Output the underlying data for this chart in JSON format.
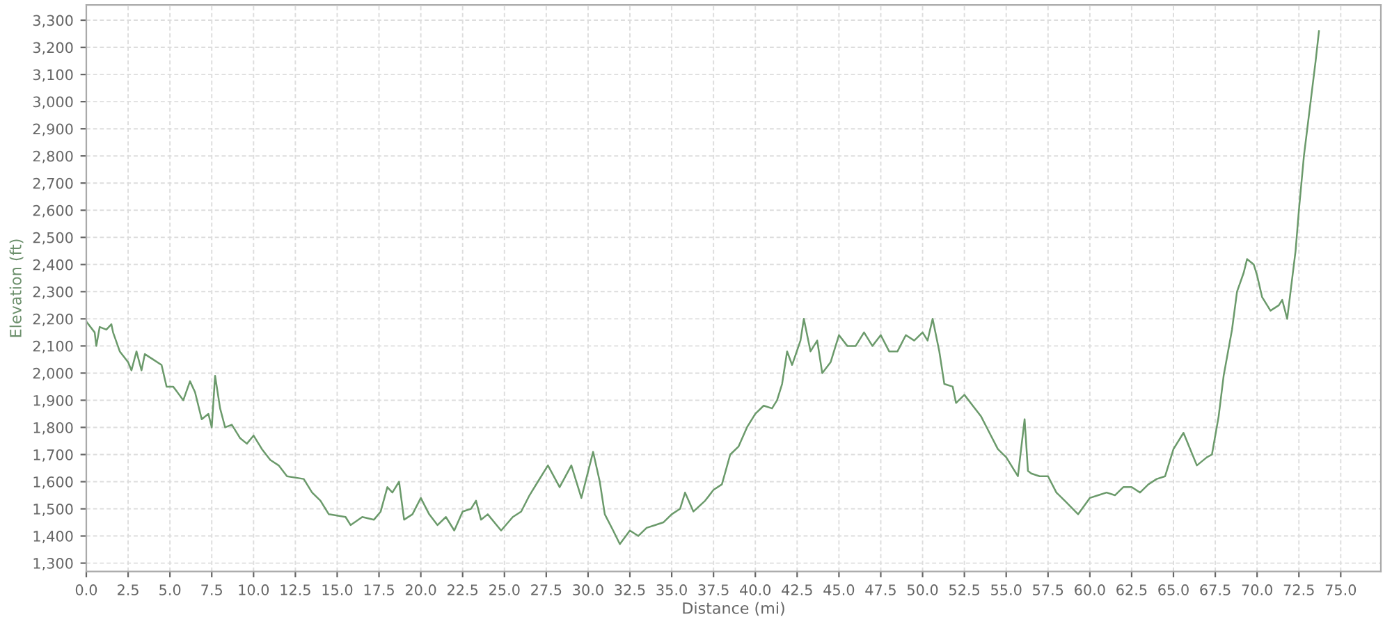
{
  "chart_data": {
    "type": "line",
    "xlabel": "Distance (mi)",
    "ylabel": "Elevation (ft)",
    "grid": true,
    "marker": "none",
    "line_style": "solid",
    "xlim": [
      0,
      77.4
    ],
    "ylim": [
      1269,
      3356
    ],
    "xticks": [
      {
        "value": 0,
        "label": "0.0"
      },
      {
        "value": 2.5,
        "label": "2.5"
      },
      {
        "value": 5,
        "label": "5.0"
      },
      {
        "value": 7.5,
        "label": "7.5"
      },
      {
        "value": 10,
        "label": "10.0"
      },
      {
        "value": 12.5,
        "label": "12.5"
      },
      {
        "value": 15,
        "label": "15.0"
      },
      {
        "value": 17.5,
        "label": "17.5"
      },
      {
        "value": 20,
        "label": "20.0"
      },
      {
        "value": 22.5,
        "label": "22.5"
      },
      {
        "value": 25,
        "label": "25.0"
      },
      {
        "value": 27.5,
        "label": "27.5"
      },
      {
        "value": 30,
        "label": "30.0"
      },
      {
        "value": 32.5,
        "label": "32.5"
      },
      {
        "value": 35,
        "label": "35.0"
      },
      {
        "value": 37.5,
        "label": "37.5"
      },
      {
        "value": 40,
        "label": "40.0"
      },
      {
        "value": 42.5,
        "label": "42.5"
      },
      {
        "value": 45,
        "label": "45.0"
      },
      {
        "value": 47.5,
        "label": "47.5"
      },
      {
        "value": 50,
        "label": "50.0"
      },
      {
        "value": 52.5,
        "label": "52.5"
      },
      {
        "value": 55,
        "label": "55.0"
      },
      {
        "value": 57.5,
        "label": "57.5"
      },
      {
        "value": 60,
        "label": "60.0"
      },
      {
        "value": 62.5,
        "label": "62.5"
      },
      {
        "value": 65,
        "label": "65.0"
      },
      {
        "value": 67.5,
        "label": "67.5"
      },
      {
        "value": 70,
        "label": "70.0"
      },
      {
        "value": 72.5,
        "label": "72.5"
      },
      {
        "value": 75,
        "label": "75.0"
      }
    ],
    "yticks": [
      {
        "value": 1300,
        "label": "1,300"
      },
      {
        "value": 1400,
        "label": "1,400"
      },
      {
        "value": 1500,
        "label": "1,500"
      },
      {
        "value": 1600,
        "label": "1,600"
      },
      {
        "value": 1700,
        "label": "1,700"
      },
      {
        "value": 1800,
        "label": "1,800"
      },
      {
        "value": 1900,
        "label": "1,900"
      },
      {
        "value": 2000,
        "label": "2,000"
      },
      {
        "value": 2100,
        "label": "2,100"
      },
      {
        "value": 2200,
        "label": "2,200"
      },
      {
        "value": 2300,
        "label": "2,300"
      },
      {
        "value": 2400,
        "label": "2,400"
      },
      {
        "value": 2500,
        "label": "2,500"
      },
      {
        "value": 2600,
        "label": "2,600"
      },
      {
        "value": 2700,
        "label": "2,700"
      },
      {
        "value": 2800,
        "label": "2,800"
      },
      {
        "value": 2900,
        "label": "2,900"
      },
      {
        "value": 3000,
        "label": "3,000"
      },
      {
        "value": 3100,
        "label": "3,100"
      },
      {
        "value": 3200,
        "label": "3,200"
      },
      {
        "value": 3300,
        "label": "3,300"
      }
    ],
    "series": [
      {
        "color": "#6b9a6b",
        "x": [
          0,
          0.5,
          0.6,
          0.8,
          1.2,
          1.5,
          1.6,
          2.0,
          2.5,
          2.7,
          3.0,
          3.3,
          3.5,
          4.0,
          4.5,
          4.8,
          5.2,
          5.8,
          6.2,
          6.5,
          6.9,
          7.3,
          7.5,
          7.7,
          8.0,
          8.3,
          8.7,
          9.2,
          9.6,
          10.0,
          10.5,
          11.0,
          11.5,
          12.0,
          13.0,
          13.5,
          14.0,
          14.5,
          15.5,
          15.8,
          16.5,
          17.2,
          17.6,
          18.0,
          18.3,
          18.7,
          19.0,
          19.5,
          20.0,
          20.5,
          21.0,
          21.5,
          22.0,
          22.5,
          23.0,
          23.3,
          23.6,
          24.0,
          24.8,
          25.5,
          26.0,
          26.5,
          27.0,
          27.6,
          28.3,
          29.0,
          29.6,
          30.3,
          30.7,
          31.0,
          31.5,
          31.9,
          32.5,
          33.0,
          33.5,
          34.0,
          34.5,
          35.0,
          35.5,
          35.8,
          36.3,
          37.0,
          37.5,
          38.0,
          38.5,
          39.0,
          39.5,
          40.0,
          40.5,
          41.0,
          41.3,
          41.6,
          41.9,
          42.2,
          42.7,
          42.9,
          43.3,
          43.7,
          44.0,
          44.5,
          45.0,
          45.5,
          46.0,
          46.5,
          47.0,
          47.5,
          48.0,
          48.5,
          49.0,
          49.5,
          50.0,
          50.3,
          50.6,
          51.0,
          51.3,
          51.8,
          52.0,
          52.5,
          53.0,
          53.5,
          54.0,
          54.5,
          55.0,
          55.5,
          55.7,
          56.1,
          56.3,
          56.5,
          57.0,
          57.5,
          58.0,
          58.5,
          59.3,
          60.0,
          60.5,
          61.0,
          61.5,
          62.0,
          62.5,
          63.0,
          63.5,
          64.0,
          64.5,
          65.0,
          65.6,
          66.0,
          66.4,
          67.0,
          67.3,
          67.7,
          68.0,
          68.5,
          68.8,
          69.2,
          69.4,
          69.8,
          70.0,
          70.3,
          70.8,
          71.3,
          71.5,
          71.8,
          72.0,
          72.3,
          72.5,
          72.8,
          73.2,
          73.5,
          73.7
        ],
        "values": [
          2190,
          2150,
          2100,
          2170,
          2160,
          2180,
          2150,
          2080,
          2040,
          2010,
          2080,
          2010,
          2070,
          2050,
          2030,
          1950,
          1950,
          1900,
          1970,
          1930,
          1830,
          1850,
          1800,
          1990,
          1870,
          1800,
          1810,
          1760,
          1740,
          1770,
          1720,
          1680,
          1660,
          1620,
          1610,
          1560,
          1530,
          1480,
          1470,
          1440,
          1470,
          1460,
          1490,
          1580,
          1560,
          1600,
          1460,
          1480,
          1540,
          1480,
          1440,
          1470,
          1420,
          1490,
          1500,
          1530,
          1460,
          1480,
          1420,
          1470,
          1490,
          1550,
          1600,
          1660,
          1580,
          1660,
          1540,
          1710,
          1600,
          1480,
          1420,
          1370,
          1420,
          1400,
          1430,
          1440,
          1450,
          1480,
          1500,
          1560,
          1490,
          1530,
          1570,
          1590,
          1700,
          1730,
          1800,
          1850,
          1880,
          1870,
          1900,
          1960,
          2080,
          2030,
          2120,
          2200,
          2080,
          2120,
          2000,
          2040,
          2140,
          2100,
          2100,
          2150,
          2100,
          2140,
          2080,
          2080,
          2140,
          2120,
          2150,
          2120,
          2200,
          2080,
          1960,
          1950,
          1890,
          1920,
          1880,
          1840,
          1780,
          1720,
          1690,
          1640,
          1620,
          1830,
          1640,
          1630,
          1620,
          1620,
          1560,
          1530,
          1480,
          1540,
          1550,
          1560,
          1550,
          1580,
          1580,
          1560,
          1590,
          1610,
          1620,
          1720,
          1780,
          1720,
          1660,
          1690,
          1700,
          1840,
          1990,
          2160,
          2300,
          2370,
          2420,
          2400,
          2360,
          2280,
          2230,
          2250,
          2270,
          2200,
          2300,
          2450,
          2600,
          2800,
          3000,
          3150,
          3260
        ]
      }
    ]
  }
}
